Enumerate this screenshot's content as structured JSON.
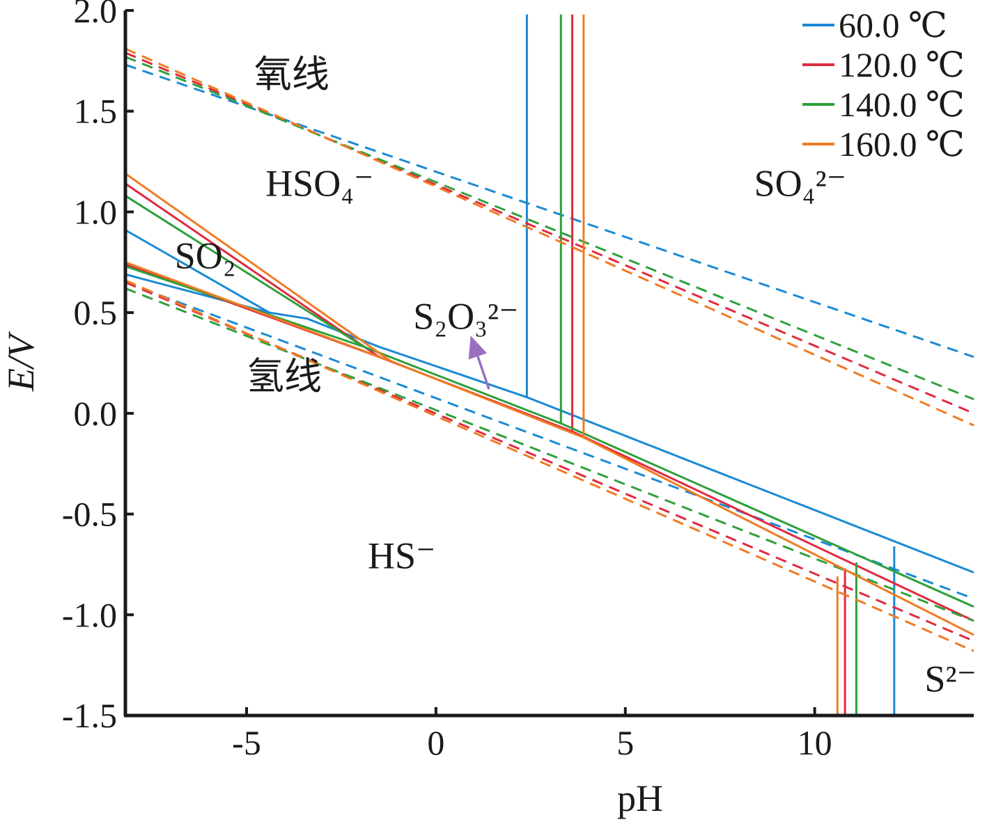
{
  "chart_data": {
    "type": "line",
    "xlabel": "pH",
    "ylabel": "E/V",
    "xlim": [
      -8.2,
      14.2
    ],
    "ylim": [
      -1.5,
      2.0
    ],
    "x_ticks": [
      {
        "value": -5,
        "label": "-5"
      },
      {
        "value": 0,
        "label": "0"
      },
      {
        "value": 5,
        "label": "5"
      },
      {
        "value": 10,
        "label": "10"
      }
    ],
    "y_ticks": [
      {
        "value": 2.0,
        "label": "2.0"
      },
      {
        "value": 1.5,
        "label": "1.5"
      },
      {
        "value": 1.0,
        "label": "1.0"
      },
      {
        "value": 0.5,
        "label": "0.5"
      },
      {
        "value": 0.0,
        "label": "0.0"
      },
      {
        "value": -0.5,
        "label": "-0.5"
      },
      {
        "value": -1.0,
        "label": "-1.0"
      },
      {
        "value": -1.5,
        "label": "-1.5"
      }
    ],
    "legend_position": "top-right",
    "grid": false,
    "series": [
      {
        "name": "60.0 ℃",
        "color": "#1a8ad4",
        "oxygen_line": [
          [
            -8.2,
            1.73
          ],
          [
            14.2,
            0.28
          ]
        ],
        "hydrogen_line": [
          [
            -8.2,
            0.65
          ],
          [
            14.2,
            -0.92
          ]
        ],
        "segments": [
          [
            [
              -8.2,
              0.91
            ],
            [
              -4.4,
              0.5
            ],
            [
              -3.4,
              0.47
            ],
            [
              -1.5,
              0.33
            ],
            [
              2.4,
              0.08
            ]
          ],
          [
            [
              -8.2,
              0.69
            ],
            [
              -4.4,
              0.5
            ]
          ],
          [
            [
              2.4,
              0.08
            ],
            [
              14.2,
              -0.79
            ]
          ],
          [
            [
              2.4,
              1.98
            ],
            [
              2.4,
              0.08
            ]
          ],
          [
            [
              12.1,
              -0.66
            ],
            [
              12.1,
              -1.5
            ]
          ]
        ]
      },
      {
        "name": "120.0 ℃",
        "color": "#e02a3f",
        "oxygen_line": [
          [
            -8.2,
            1.79
          ],
          [
            14.2,
            0.0
          ]
        ],
        "hydrogen_line": [
          [
            -8.2,
            0.65
          ],
          [
            14.2,
            -1.13
          ]
        ],
        "segments": [
          [
            [
              -8.2,
              1.14
            ],
            [
              -1.5,
              0.28
            ]
          ],
          [
            [
              -8.2,
              0.74
            ],
            [
              -1.5,
              0.28
            ]
          ],
          [
            [
              -1.5,
              0.28
            ],
            [
              3.6,
              -0.09
            ]
          ],
          [
            [
              3.6,
              -0.09
            ],
            [
              14.2,
              -1.03
            ]
          ],
          [
            [
              3.6,
              1.98
            ],
            [
              3.6,
              -0.09
            ]
          ],
          [
            [
              10.8,
              -0.77
            ],
            [
              10.8,
              -1.5
            ]
          ]
        ]
      },
      {
        "name": "140.0 ℃",
        "color": "#2ea03a",
        "oxygen_line": [
          [
            -8.2,
            1.77
          ],
          [
            14.2,
            0.07
          ]
        ],
        "hydrogen_line": [
          [
            -8.2,
            0.62
          ],
          [
            14.2,
            -1.03
          ]
        ],
        "segments": [
          [
            [
              -8.2,
              1.08
            ],
            [
              -1.9,
              0.33
            ]
          ],
          [
            [
              -8.2,
              0.73
            ],
            [
              -1.9,
              0.33
            ]
          ],
          [
            [
              -1.9,
              0.33
            ],
            [
              3.3,
              -0.05
            ]
          ],
          [
            [
              3.3,
              -0.05
            ],
            [
              14.2,
              -0.96
            ]
          ],
          [
            [
              3.3,
              1.98
            ],
            [
              3.3,
              -0.05
            ]
          ],
          [
            [
              11.1,
              -0.74
            ],
            [
              11.1,
              -1.5
            ]
          ]
        ]
      },
      {
        "name": "160.0 ℃",
        "color": "#f07a22",
        "oxygen_line": [
          [
            -8.2,
            1.81
          ],
          [
            14.2,
            -0.06
          ]
        ],
        "hydrogen_line": [
          [
            -8.2,
            0.66
          ],
          [
            14.2,
            -1.18
          ]
        ],
        "segments": [
          [
            [
              -8.2,
              1.19
            ],
            [
              -1.2,
              0.26
            ]
          ],
          [
            [
              -8.2,
              0.75
            ],
            [
              -1.2,
              0.26
            ]
          ],
          [
            [
              -1.2,
              0.26
            ],
            [
              3.9,
              -0.12
            ]
          ],
          [
            [
              3.9,
              -0.12
            ],
            [
              14.2,
              -1.1
            ]
          ],
          [
            [
              3.9,
              1.98
            ],
            [
              3.9,
              -0.12
            ]
          ],
          [
            [
              10.6,
              -0.81
            ],
            [
              10.6,
              -1.5
            ]
          ]
        ]
      }
    ],
    "annotations": [
      {
        "text": "氧线",
        "x": -4.8,
        "y": 1.62
      },
      {
        "text": "氢线",
        "x": -5.0,
        "y": 0.12
      },
      {
        "text": "HSO₄⁻",
        "x": -4.5,
        "y": 1.08
      },
      {
        "text": "SO₄²⁻",
        "x": 8.4,
        "y": 1.08
      },
      {
        "text": "SO₂",
        "x": -6.9,
        "y": 0.72
      },
      {
        "text": "S₂O₃²⁻",
        "x": -0.6,
        "y": 0.42
      },
      {
        "text": "HS⁻",
        "x": -1.8,
        "y": -0.77
      },
      {
        "text": "S²⁻",
        "x": 12.9,
        "y": -1.38
      }
    ],
    "arrow": {
      "from": [
        1.4,
        0.12
      ],
      "to": [
        1.0,
        0.34
      ],
      "color": "#9b6fc0"
    }
  }
}
